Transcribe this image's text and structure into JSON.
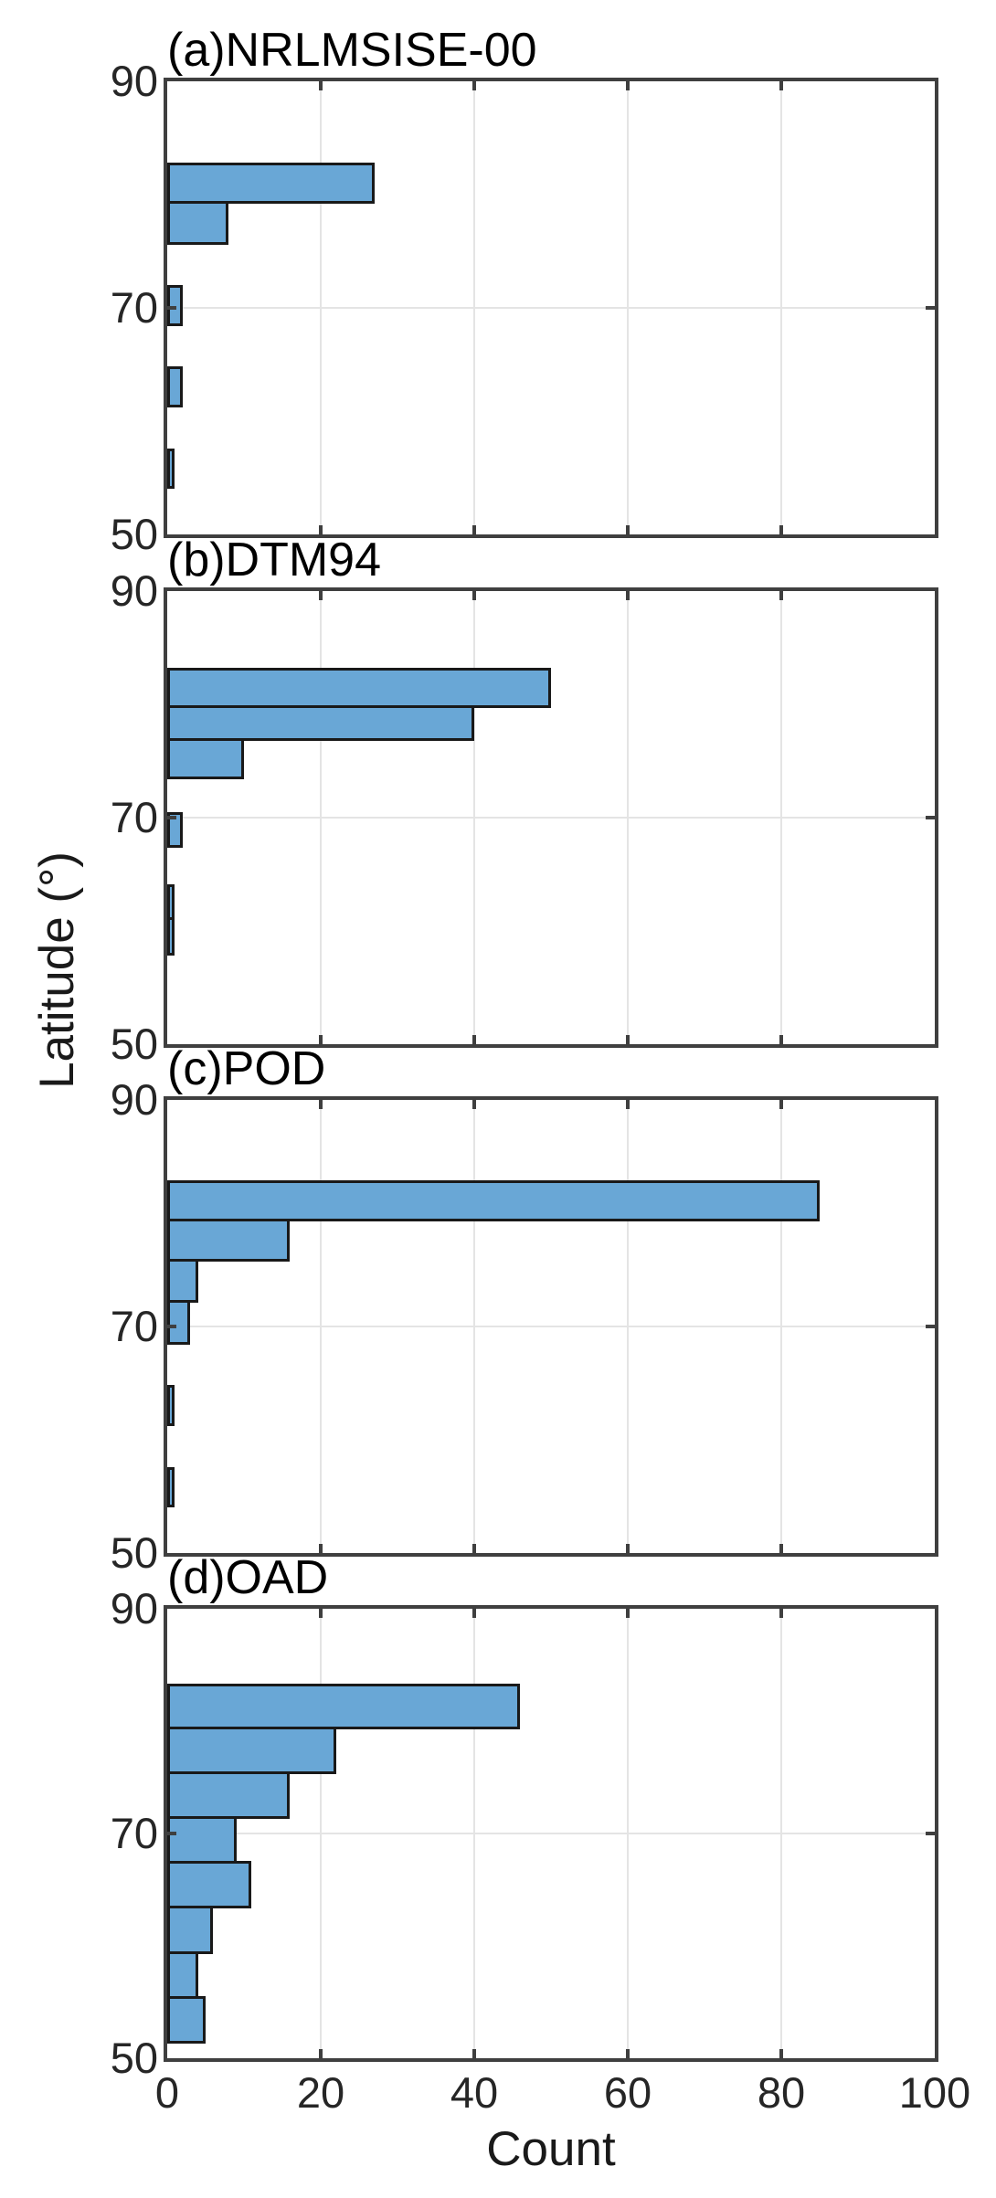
{
  "figure": {
    "ylabel": "Latitude (°)",
    "xlabel": "Count",
    "background": "#ffffff"
  },
  "axes": {
    "x": {
      "min": 0,
      "max": 100,
      "ticks": [
        0,
        20,
        40,
        60,
        80,
        100
      ],
      "gridlines": [
        20,
        40,
        60,
        80
      ]
    },
    "y": {
      "min": 50,
      "max": 90,
      "ticks": [
        90,
        70,
        50
      ],
      "gridlines": [
        70
      ]
    }
  },
  "style": {
    "bar_fill": "#69a7d6",
    "bar_edge": "#191919",
    "axis_color": "#3f3f3f",
    "grid_color": "#e4e4e4",
    "tick_label_color": "#262626",
    "title_color": "#000000"
  },
  "chart_data": [
    {
      "type": "bar",
      "orientation": "horizontal",
      "panel_label": "(a)NRLMSISE-00",
      "model": "NRLMSISE-00",
      "xlabel": "Count",
      "ylabel": "Latitude (°)",
      "xlim": [
        0,
        100
      ],
      "ylim": [
        50,
        90
      ],
      "grid": true,
      "bars": [
        {
          "lat_low": 79.2,
          "lat_high": 82.8,
          "count": 27
        },
        {
          "lat_low": 75.6,
          "lat_high": 79.2,
          "count": 8
        },
        {
          "lat_low": 68.4,
          "lat_high": 72.0,
          "count": 2
        },
        {
          "lat_low": 61.2,
          "lat_high": 64.8,
          "count": 2
        },
        {
          "lat_low": 54.0,
          "lat_high": 57.6,
          "count": 1
        }
      ]
    },
    {
      "type": "bar",
      "orientation": "horizontal",
      "panel_label": "(b)DTM94",
      "model": "DTM94",
      "xlabel": "Count",
      "ylabel": "Latitude (°)",
      "xlim": [
        0,
        100
      ],
      "ylim": [
        50,
        90
      ],
      "grid": true,
      "bars": [
        {
          "lat_low": 79.7,
          "lat_high": 83.2,
          "count": 50
        },
        {
          "lat_low": 76.8,
          "lat_high": 79.7,
          "count": 40
        },
        {
          "lat_low": 73.4,
          "lat_high": 76.8,
          "count": 10
        },
        {
          "lat_low": 67.3,
          "lat_high": 70.5,
          "count": 2
        },
        {
          "lat_low": 61.0,
          "lat_high": 64.1,
          "count": 1
        },
        {
          "lat_low": 57.8,
          "lat_high": 61.0,
          "count": 1
        }
      ]
    },
    {
      "type": "bar",
      "orientation": "horizontal",
      "panel_label": "(c)POD",
      "model": "POD",
      "xlabel": "Count",
      "ylabel": "Latitude (°)",
      "xlim": [
        0,
        100
      ],
      "ylim": [
        50,
        90
      ],
      "grid": true,
      "bars": [
        {
          "lat_low": 79.3,
          "lat_high": 82.9,
          "count": 85
        },
        {
          "lat_low": 75.7,
          "lat_high": 79.3,
          "count": 16
        },
        {
          "lat_low": 72.1,
          "lat_high": 75.7,
          "count": 4
        },
        {
          "lat_low": 68.4,
          "lat_high": 72.0,
          "count": 3
        },
        {
          "lat_low": 61.2,
          "lat_high": 64.8,
          "count": 1
        },
        {
          "lat_low": 54.0,
          "lat_high": 57.6,
          "count": 1
        }
      ]
    },
    {
      "type": "bar",
      "orientation": "horizontal",
      "panel_label": "(d)OAD",
      "model": "OAD",
      "xlabel": "Count",
      "ylabel": "Latitude (°)",
      "xlim": [
        0,
        100
      ],
      "ylim": [
        50,
        90
      ],
      "grid": true,
      "bars": [
        {
          "lat_low": 79.3,
          "lat_high": 83.3,
          "count": 46
        },
        {
          "lat_low": 75.3,
          "lat_high": 79.3,
          "count": 22
        },
        {
          "lat_low": 71.3,
          "lat_high": 75.3,
          "count": 16
        },
        {
          "lat_low": 67.3,
          "lat_high": 71.3,
          "count": 9
        },
        {
          "lat_low": 63.3,
          "lat_high": 67.3,
          "count": 11
        },
        {
          "lat_low": 59.3,
          "lat_high": 63.3,
          "count": 6
        },
        {
          "lat_low": 55.3,
          "lat_high": 59.3,
          "count": 4
        },
        {
          "lat_low": 51.3,
          "lat_high": 55.3,
          "count": 5
        }
      ]
    }
  ]
}
